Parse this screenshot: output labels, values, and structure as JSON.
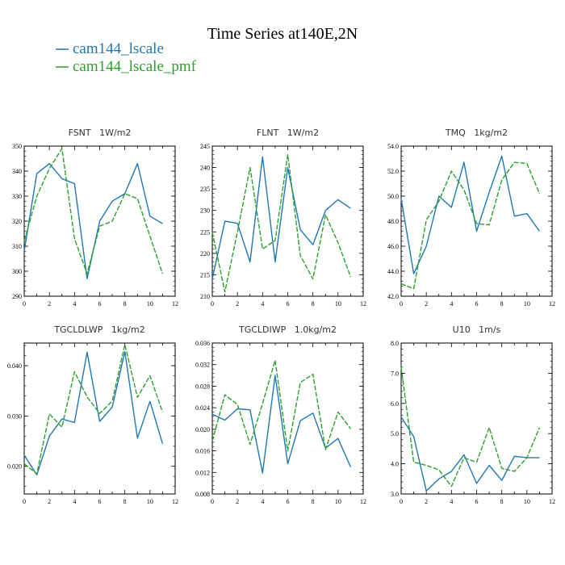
{
  "figure": {
    "title": "Time Series at140E,2N",
    "colors": {
      "series1": "#1f77b4",
      "series2": "#2ca02c"
    }
  },
  "chart_data": [
    {
      "type": "line",
      "title": "FSNT   1W/m2",
      "x": [
        0,
        1,
        2,
        3,
        4,
        5,
        6,
        7,
        8,
        9,
        10,
        11
      ],
      "xlim": [
        0,
        12
      ],
      "xticks": [
        "0",
        "2",
        "4",
        "6",
        "8",
        "10",
        "12"
      ],
      "ylim": [
        290,
        350
      ],
      "yticks": [
        "290",
        "300",
        "310",
        "320",
        "330",
        "340",
        "350"
      ],
      "series": [
        {
          "name": "cam144_lscale",
          "values": [
            308,
            339,
            343,
            337,
            335,
            297,
            320,
            328,
            331,
            343,
            322,
            319
          ]
        },
        {
          "name": "cam144_lscale_pmf",
          "values": [
            312,
            330,
            341,
            349,
            313,
            299,
            318,
            320,
            331,
            329,
            314,
            299
          ]
        }
      ]
    },
    {
      "type": "line",
      "title": "FLNT   1W/m2",
      "x": [
        0,
        1,
        2,
        3,
        4,
        5,
        6,
        7,
        8,
        9,
        10,
        11
      ],
      "xlim": [
        0,
        12
      ],
      "xticks": [
        "0",
        "2",
        "4",
        "6",
        "8",
        "10",
        "12"
      ],
      "ylim": [
        210,
        245
      ],
      "yticks": [
        "210",
        "215",
        "220",
        "225",
        "230",
        "235",
        "240",
        "245"
      ],
      "series": [
        {
          "name": "cam144_lscale",
          "values": [
            214,
            227.5,
            227,
            218,
            242.5,
            218,
            240,
            225.5,
            222,
            230,
            232.5,
            230.5
          ]
        },
        {
          "name": "cam144_lscale_pmf",
          "values": [
            225,
            211,
            225,
            240,
            221,
            223,
            243,
            219.5,
            214,
            229,
            222.5,
            214.5
          ]
        }
      ]
    },
    {
      "type": "line",
      "title": "TMQ   1kg/m2",
      "x": [
        0,
        1,
        2,
        3,
        4,
        5,
        6,
        7,
        8,
        9,
        10,
        11
      ],
      "xlim": [
        0,
        12
      ],
      "xticks": [
        "0",
        "2",
        "4",
        "6",
        "8",
        "10",
        "12"
      ],
      "ylim": [
        42,
        54
      ],
      "yticks": [
        "42.0",
        "44.0",
        "46.0",
        "48.0",
        "50.0",
        "52.0",
        "54.0"
      ],
      "series": [
        {
          "name": "cam144_lscale",
          "values": [
            49.8,
            43.8,
            46,
            50,
            49.1,
            52.7,
            47.2,
            50.3,
            53.2,
            48.4,
            48.6,
            47.2
          ]
        },
        {
          "name": "cam144_lscale_pmf",
          "values": [
            43,
            42.6,
            48.1,
            49.6,
            52,
            50.5,
            47.8,
            47.7,
            51.3,
            52.7,
            52.6,
            50.2
          ]
        }
      ]
    },
    {
      "type": "line",
      "title": "TGCLDLWP   1kg/m2",
      "x": [
        0,
        1,
        2,
        3,
        4,
        5,
        6,
        7,
        8,
        9,
        10,
        11
      ],
      "xlim": [
        0,
        12
      ],
      "xticks": [
        "0",
        "2",
        "4",
        "6",
        "8",
        "10",
        "12"
      ],
      "ylim": [
        0.0145,
        0.0445
      ],
      "yticks": [
        "0.020",
        "0.030",
        "0.040"
      ],
      "ytickvals": [
        0.02,
        0.03,
        0.04
      ],
      "series": [
        {
          "name": "cam144_lscale",
          "values": [
            0.0222,
            0.0183,
            0.026,
            0.0294,
            0.0287,
            0.0427,
            0.0289,
            0.0318,
            0.0428,
            0.0256,
            0.0329,
            0.0245
          ]
        },
        {
          "name": "cam144_lscale_pmf",
          "values": [
            0.0205,
            0.0185,
            0.0304,
            0.0278,
            0.0388,
            0.0338,
            0.0305,
            0.033,
            0.0442,
            0.0337,
            0.038,
            0.0308
          ]
        }
      ]
    },
    {
      "type": "line",
      "title": "TGCLDIWP   1.0kg/m2",
      "x": [
        0,
        1,
        2,
        3,
        4,
        5,
        6,
        7,
        8,
        9,
        10,
        11
      ],
      "xlim": [
        0,
        12
      ],
      "xticks": [
        "0",
        "2",
        "4",
        "6",
        "8",
        "10",
        "12"
      ],
      "ylim": [
        0.008,
        0.036
      ],
      "yticks": [
        "0.008",
        "0.012",
        "0.016",
        "0.020",
        "0.024",
        "0.028",
        "0.032",
        "0.036"
      ],
      "series": [
        {
          "name": "cam144_lscale",
          "values": [
            0.0228,
            0.0217,
            0.0238,
            0.0236,
            0.0119,
            0.03,
            0.0136,
            0.0216,
            0.023,
            0.0165,
            0.0183,
            0.013
          ]
        },
        {
          "name": "cam144_lscale_pmf",
          "values": [
            0.0178,
            0.0264,
            0.0246,
            0.0172,
            0.0248,
            0.0328,
            0.016,
            0.0287,
            0.0302,
            0.0162,
            0.0232,
            0.0201
          ]
        }
      ]
    },
    {
      "type": "line",
      "title": "U10   1m/s",
      "x": [
        0,
        1,
        2,
        3,
        4,
        5,
        6,
        7,
        8,
        9,
        10,
        11
      ],
      "xlim": [
        0,
        12
      ],
      "xticks": [
        "0",
        "2",
        "4",
        "6",
        "8",
        "10",
        "12"
      ],
      "ylim": [
        3,
        8
      ],
      "yticks": [
        "3.0",
        "4.0",
        "5.0",
        "6.0",
        "7.0",
        "8.0"
      ],
      "series": [
        {
          "name": "cam144_lscale",
          "values": [
            5.55,
            4.9,
            3.1,
            3.5,
            3.75,
            4.3,
            3.35,
            3.95,
            3.45,
            4.25,
            4.2,
            4.2
          ]
        },
        {
          "name": "cam144_lscale_pmf",
          "values": [
            7.2,
            4.05,
            3.95,
            3.8,
            3.25,
            4.2,
            4.05,
            5.2,
            3.85,
            3.75,
            4.2,
            5.2
          ]
        }
      ]
    }
  ]
}
